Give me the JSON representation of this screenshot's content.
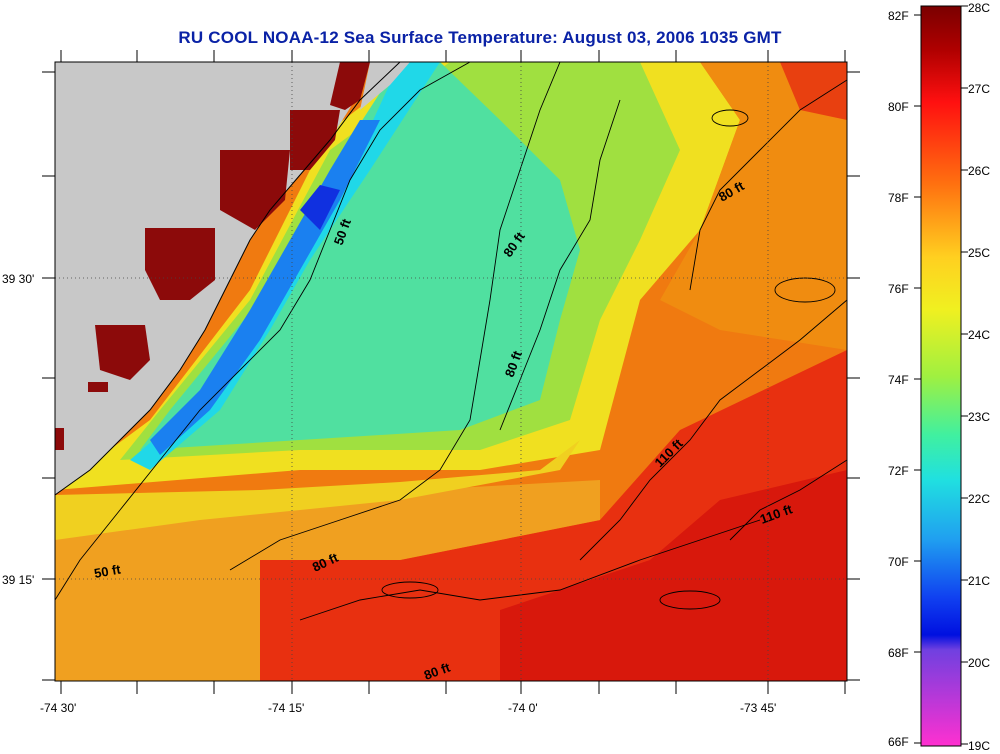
{
  "title": "RU COOL  NOAA-12  Sea Surface Temperature:  August 03, 2006 1035 GMT",
  "map": {
    "x_ticks": [
      "-74 30'",
      "-74 15'",
      "-74 0'",
      "-73 45'"
    ],
    "y_ticks": [
      "39 30'",
      "39 15'"
    ],
    "contour_labels": [
      "50 ft",
      "50 ft",
      "80 ft",
      "80 ft",
      "80 ft",
      "80 ft",
      "80 ft",
      "110 ft",
      "110 ft"
    ],
    "land_color": "#c8c8c8"
  },
  "colorbar": {
    "fahrenheit_labels": [
      "82F",
      "80F",
      "78F",
      "76F",
      "74F",
      "72F",
      "70F",
      "68F",
      "66F"
    ],
    "celsius_labels": [
      "28C",
      "27C",
      "26C",
      "25C",
      "24C",
      "23C",
      "22C",
      "21C",
      "20C",
      "19C"
    ]
  }
}
